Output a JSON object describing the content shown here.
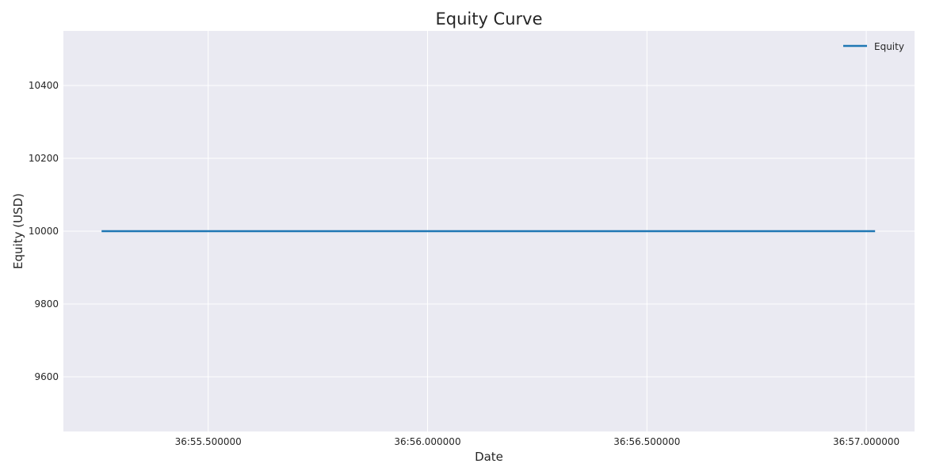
{
  "chart_data": {
    "type": "line",
    "title": "Equity Curve",
    "xlabel": "Date",
    "ylabel": "Equity (USD)",
    "x_ticks": [
      "36:55.500000",
      "36:56.000000",
      "36:56.500000",
      "36:57.000000"
    ],
    "x_tick_values": [
      55.5,
      56.0,
      56.5,
      57.0
    ],
    "y_ticks": [
      9600,
      9800,
      10000,
      10200,
      10400
    ],
    "xlim": [
      55.17,
      57.11
    ],
    "ylim": [
      9450,
      10550
    ],
    "grid": true,
    "legend_position": "top-right",
    "series": [
      {
        "name": "Equity",
        "color": "#1f77b4",
        "x": [
          55.257,
          56.0,
          56.5,
          57.02
        ],
        "y": [
          10000,
          10000,
          10000,
          10000
        ]
      }
    ]
  }
}
